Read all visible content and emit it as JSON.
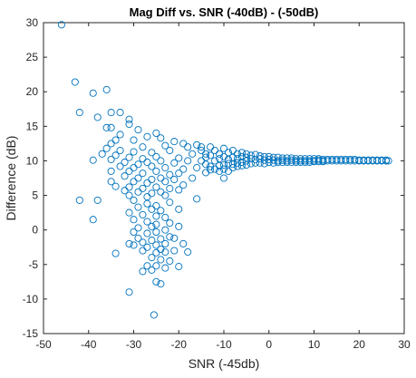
{
  "chart_data": {
    "type": "scatter",
    "title": "Mag Diff vs. SNR (-40dB) - (-50dB)",
    "xlabel": "SNR (-45db)",
    "ylabel": "Difference (dB)",
    "xlim": [
      -50,
      30
    ],
    "ylim": [
      -15,
      30
    ],
    "xticks": [
      -50,
      -40,
      -30,
      -20,
      -10,
      0,
      10,
      20,
      30
    ],
    "yticks": [
      -15,
      -10,
      -5,
      0,
      5,
      10,
      15,
      20,
      25,
      30
    ],
    "grid": false,
    "marker": "open-circle",
    "series": [
      {
        "name": "",
        "color": "#0072BD",
        "points": [
          [
            -46,
            29.7
          ],
          [
            -43,
            21.4
          ],
          [
            -42,
            17
          ],
          [
            -39,
            19.8
          ],
          [
            -36,
            20.3
          ],
          [
            -38,
            16.3
          ],
          [
            -33,
            17
          ],
          [
            -35,
            17
          ],
          [
            -31,
            16
          ],
          [
            -31,
            15.3
          ],
          [
            -36,
            14.8
          ],
          [
            -35,
            14.8
          ],
          [
            -29,
            14.5
          ],
          [
            -25,
            14
          ],
          [
            -33,
            13.8
          ],
          [
            -34,
            13
          ],
          [
            -30,
            13
          ],
          [
            -27,
            13.5
          ],
          [
            -24,
            13.3
          ],
          [
            -21,
            12.8
          ],
          [
            -19,
            12.5
          ],
          [
            -16,
            12.3
          ],
          [
            -15,
            12
          ],
          [
            -35,
            12.5
          ],
          [
            -28,
            12
          ],
          [
            -23,
            12.2
          ],
          [
            -18,
            12
          ],
          [
            -13,
            12
          ],
          [
            -36,
            11.8
          ],
          [
            -33,
            11.5
          ],
          [
            -30,
            11.3
          ],
          [
            -26,
            11.2
          ],
          [
            -22,
            11.5
          ],
          [
            -17,
            11
          ],
          [
            -14,
            11
          ],
          [
            -11,
            11
          ],
          [
            -37,
            11
          ],
          [
            -34,
            10.8
          ],
          [
            -31,
            10.5
          ],
          [
            -28,
            10.3
          ],
          [
            -25,
            10.6
          ],
          [
            -20,
            10.4
          ],
          [
            -39,
            10.1
          ],
          [
            -35,
            10.2
          ],
          [
            -32,
            9.8
          ],
          [
            -29,
            9.5
          ],
          [
            -27,
            9.8
          ],
          [
            -24,
            10
          ],
          [
            -21,
            9.7
          ],
          [
            -18,
            10
          ],
          [
            -15,
            10
          ],
          [
            -12,
            10
          ],
          [
            -33,
            9.2
          ],
          [
            -30,
            9
          ],
          [
            -26,
            9.2
          ],
          [
            -23,
            9
          ],
          [
            -19,
            8.8
          ],
          [
            -16,
            9
          ],
          [
            -13,
            8.7
          ],
          [
            -35,
            8.5
          ],
          [
            -31,
            8.5
          ],
          [
            -28,
            8.2
          ],
          [
            -25,
            8.5
          ],
          [
            -22,
            8
          ],
          [
            -20,
            8.2
          ],
          [
            -14,
            8.3
          ],
          [
            -32,
            7.8
          ],
          [
            -29,
            7.5
          ],
          [
            -26,
            7.3
          ],
          [
            -24,
            7.5
          ],
          [
            -21,
            7.3
          ],
          [
            -17,
            7.5
          ],
          [
            -35,
            7
          ],
          [
            -30,
            7
          ],
          [
            -27,
            6.8
          ],
          [
            -23,
            7
          ],
          [
            -19,
            6.5
          ],
          [
            -34,
            6.3
          ],
          [
            -31,
            6.2
          ],
          [
            -28,
            6
          ],
          [
            -25,
            6.2
          ],
          [
            -22,
            6
          ],
          [
            -32,
            5.7
          ],
          [
            -29,
            5.5
          ],
          [
            -26,
            5.3
          ],
          [
            -24,
            5.5
          ],
          [
            -20,
            5.8
          ],
          [
            -31,
            5
          ],
          [
            -27,
            4.8
          ],
          [
            -23,
            5
          ],
          [
            -16,
            4.5
          ],
          [
            -42,
            4.3
          ],
          [
            -38,
            4.3
          ],
          [
            -30,
            4.3
          ],
          [
            -27,
            3.8
          ],
          [
            -25,
            3.5
          ],
          [
            -22,
            4
          ],
          [
            -29,
            3.3
          ],
          [
            -26,
            3
          ],
          [
            -24,
            2.8
          ],
          [
            -20,
            3
          ],
          [
            -31,
            2.5
          ],
          [
            -28,
            2.2
          ],
          [
            -25,
            2
          ],
          [
            -23,
            1.8
          ],
          [
            -39,
            1.5
          ],
          [
            -30,
            1.5
          ],
          [
            -27,
            1.2
          ],
          [
            -25,
            0.8
          ],
          [
            -22,
            1
          ],
          [
            -29,
            0.3
          ],
          [
            -26,
            0.5
          ],
          [
            -23,
            0
          ],
          [
            -20,
            0.5
          ],
          [
            -30,
            -0.3
          ],
          [
            -27,
            -0.5
          ],
          [
            -25,
            -0.3
          ],
          [
            -22,
            -1
          ],
          [
            -29,
            -1.2
          ],
          [
            -26,
            -1.5
          ],
          [
            -24,
            -1.3
          ],
          [
            -21,
            -1.2
          ],
          [
            -31,
            -2
          ],
          [
            -28,
            -1.8
          ],
          [
            -25,
            -2.2
          ],
          [
            -23,
            -2
          ],
          [
            -19,
            -2
          ],
          [
            -30,
            -2.2
          ],
          [
            -27,
            -2.5
          ],
          [
            -24,
            -2.8
          ],
          [
            -21,
            -3
          ],
          [
            -34,
            -3.4
          ],
          [
            -28,
            -3
          ],
          [
            -25,
            -3.3
          ],
          [
            -23,
            -3.2
          ],
          [
            -18,
            -3.2
          ],
          [
            -26,
            -4
          ],
          [
            -24,
            -4.3
          ],
          [
            -22,
            -4.5
          ],
          [
            -27,
            -5.2
          ],
          [
            -25,
            -5.2
          ],
          [
            -23,
            -5.5
          ],
          [
            -20,
            -5.3
          ],
          [
            -28,
            -6
          ],
          [
            -26,
            -5.8
          ],
          [
            -25,
            -7.5
          ],
          [
            -24,
            -7.8
          ],
          [
            -31,
            -9
          ],
          [
            -25.5,
            -12.3
          ],
          [
            -15,
            11.5
          ],
          [
            -14,
            10.5
          ],
          [
            -14,
            9.5
          ],
          [
            -13,
            10.8
          ],
          [
            -13,
            9.2
          ],
          [
            -12,
            11.5
          ],
          [
            -12,
            8.8
          ],
          [
            -11,
            10.3
          ],
          [
            -11,
            9.3
          ],
          [
            -11,
            8.5
          ],
          [
            -10,
            11.8
          ],
          [
            -10,
            10.6
          ],
          [
            -10,
            9.4
          ],
          [
            -10,
            8.8
          ],
          [
            -10,
            7.5
          ],
          [
            -9,
            11.2
          ],
          [
            -9,
            10.2
          ],
          [
            -9,
            9.6
          ],
          [
            -9,
            8.5
          ],
          [
            -8,
            11.5
          ],
          [
            -8,
            10.5
          ],
          [
            -8,
            9.5
          ],
          [
            -8,
            9
          ],
          [
            -7,
            11
          ],
          [
            -7,
            10.3
          ],
          [
            -7,
            9.7
          ],
          [
            -7,
            9.2
          ],
          [
            -6,
            11.2
          ],
          [
            -6,
            10.6
          ],
          [
            -6,
            9.8
          ],
          [
            -6,
            9.3
          ],
          [
            -5,
            11
          ],
          [
            -5,
            10.5
          ],
          [
            -5,
            10
          ],
          [
            -5,
            9.4
          ],
          [
            -4,
            10.8
          ],
          [
            -4,
            10.3
          ],
          [
            -4,
            9.6
          ],
          [
            -3,
            10.9
          ],
          [
            -3,
            10.2
          ],
          [
            -3,
            9.7
          ],
          [
            -2,
            10.7
          ],
          [
            -2,
            10.3
          ],
          [
            -2,
            9.7
          ],
          [
            -1,
            10.6
          ],
          [
            -1,
            10.1
          ],
          [
            -1,
            9.6
          ],
          [
            0,
            10.6
          ],
          [
            0,
            10.2
          ],
          [
            0,
            9.8
          ],
          [
            1,
            10.5
          ],
          [
            1,
            10.1
          ],
          [
            1,
            9.7
          ],
          [
            2,
            10.5
          ],
          [
            2,
            10
          ],
          [
            2,
            9.8
          ],
          [
            3,
            10.4
          ],
          [
            3,
            10.1
          ],
          [
            3,
            9.8
          ],
          [
            4,
            10.4
          ],
          [
            4,
            10
          ],
          [
            4,
            9.8
          ],
          [
            5,
            10.4
          ],
          [
            5,
            10.1
          ],
          [
            5,
            9.8
          ],
          [
            6,
            10.3
          ],
          [
            6,
            10
          ],
          [
            6,
            9.8
          ],
          [
            7,
            10.3
          ],
          [
            7,
            10
          ],
          [
            7,
            9.8
          ],
          [
            8,
            10.3
          ],
          [
            8,
            10
          ],
          [
            8,
            9.8
          ],
          [
            9,
            10.3
          ],
          [
            9,
            10
          ],
          [
            9,
            9.8
          ],
          [
            10,
            10.3
          ],
          [
            10,
            10
          ],
          [
            10,
            9.9
          ],
          [
            11,
            10.3
          ],
          [
            11,
            10.1
          ],
          [
            11,
            9.9
          ],
          [
            12,
            10.2
          ],
          [
            12,
            10
          ],
          [
            12,
            9.9
          ],
          [
            13,
            10.2
          ],
          [
            13,
            10
          ],
          [
            14,
            10.2
          ],
          [
            14,
            10
          ],
          [
            15,
            10.2
          ],
          [
            15,
            10
          ],
          [
            16,
            10.2
          ],
          [
            16,
            10
          ],
          [
            17,
            10.2
          ],
          [
            17,
            10
          ],
          [
            18,
            10.2
          ],
          [
            18,
            10
          ],
          [
            19,
            10.2
          ],
          [
            19,
            10
          ],
          [
            20,
            10.1
          ],
          [
            20,
            10
          ],
          [
            21,
            10.1
          ],
          [
            21,
            10
          ],
          [
            22,
            10.1
          ],
          [
            22,
            10
          ],
          [
            23,
            10.1
          ],
          [
            23,
            10
          ],
          [
            24,
            10.1
          ],
          [
            24,
            10
          ],
          [
            25,
            10.1
          ],
          [
            25,
            10
          ],
          [
            26,
            10.1
          ],
          [
            26,
            10
          ],
          [
            26.5,
            10
          ]
        ]
      }
    ]
  }
}
